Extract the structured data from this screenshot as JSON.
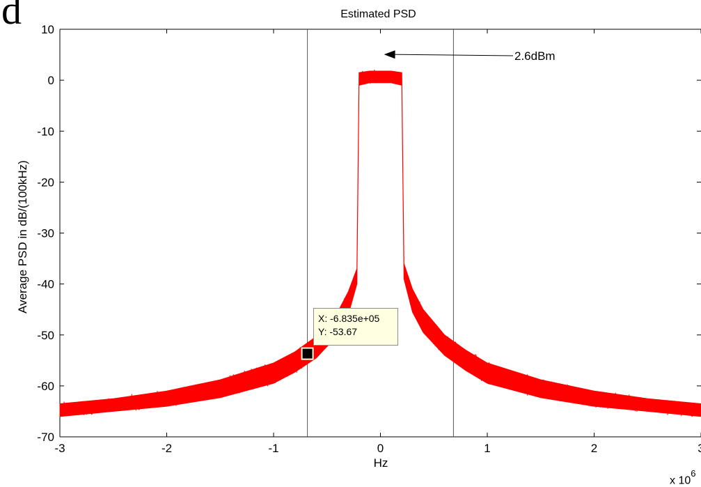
{
  "panel_label": "d",
  "chart_data": {
    "type": "line",
    "title": "Estimated PSD",
    "xlabel": "Hz",
    "ylabel": "Average PSD in dB/(100kHz)",
    "x_exponent_base": "x 10",
    "x_exponent_power": "6",
    "xlim": [
      -3,
      3
    ],
    "ylim": [
      -70,
      10
    ],
    "x_ticks": [
      "-3",
      "-2",
      "-1",
      "0",
      "1",
      "2",
      "3"
    ],
    "y_ticks": [
      "10",
      "0",
      "-10",
      "-20",
      "-30",
      "-40",
      "-50",
      "-60",
      "-70"
    ],
    "grid": false,
    "line_color": "#ff0000",
    "series": [
      {
        "envelope_upper": [
          [
            -3.0,
            -63.5
          ],
          [
            -2.5,
            -62.5
          ],
          [
            -2.0,
            -61.0
          ],
          [
            -1.5,
            -58.8
          ],
          [
            -1.0,
            -55.5
          ],
          [
            -0.8,
            -53.3
          ],
          [
            -0.6,
            -50.3
          ],
          [
            -0.4,
            -45.5
          ],
          [
            -0.3,
            -41.5
          ],
          [
            -0.22,
            -37.0
          ],
          [
            -0.2,
            1.5
          ],
          [
            -0.1,
            1.8
          ],
          [
            0.0,
            1.8
          ],
          [
            0.1,
            1.8
          ],
          [
            0.2,
            1.5
          ],
          [
            0.22,
            -36.0
          ],
          [
            0.3,
            -41.0
          ],
          [
            0.4,
            -45.0
          ],
          [
            0.6,
            -50.0
          ],
          [
            0.8,
            -53.0
          ],
          [
            1.0,
            -55.5
          ],
          [
            1.5,
            -58.8
          ],
          [
            2.0,
            -61.0
          ],
          [
            2.5,
            -62.5
          ],
          [
            3.0,
            -63.5
          ]
        ],
        "envelope_lower": [
          [
            -3.0,
            -66.0
          ],
          [
            -2.5,
            -65.0
          ],
          [
            -2.0,
            -64.0
          ],
          [
            -1.5,
            -62.3
          ],
          [
            -1.0,
            -59.5
          ],
          [
            -0.8,
            -57.3
          ],
          [
            -0.6,
            -54.5
          ],
          [
            -0.4,
            -50.0
          ],
          [
            -0.3,
            -46.0
          ],
          [
            -0.22,
            -40.0
          ],
          [
            -0.2,
            -1.0
          ],
          [
            -0.1,
            -0.5
          ],
          [
            0.0,
            -0.5
          ],
          [
            0.1,
            -0.5
          ],
          [
            0.2,
            -1.0
          ],
          [
            0.22,
            -39.0
          ],
          [
            0.3,
            -45.5
          ],
          [
            0.4,
            -49.5
          ],
          [
            0.6,
            -54.0
          ],
          [
            0.8,
            -57.0
          ],
          [
            1.0,
            -59.5
          ],
          [
            1.5,
            -62.3
          ],
          [
            2.0,
            -64.0
          ],
          [
            2.5,
            -65.0
          ],
          [
            3.0,
            -66.0
          ]
        ]
      }
    ],
    "vertical_lines_x": [
      -0.6835,
      0.6835
    ],
    "annotation": {
      "text": "2.6dBm",
      "arrow_to": [
        0.02,
        2.6
      ]
    },
    "marker": {
      "x": -0.6835,
      "y": -53.67
    },
    "datatip": {
      "x_text": "X: -6.835e+05",
      "y_text": "Y: -53.67"
    }
  }
}
